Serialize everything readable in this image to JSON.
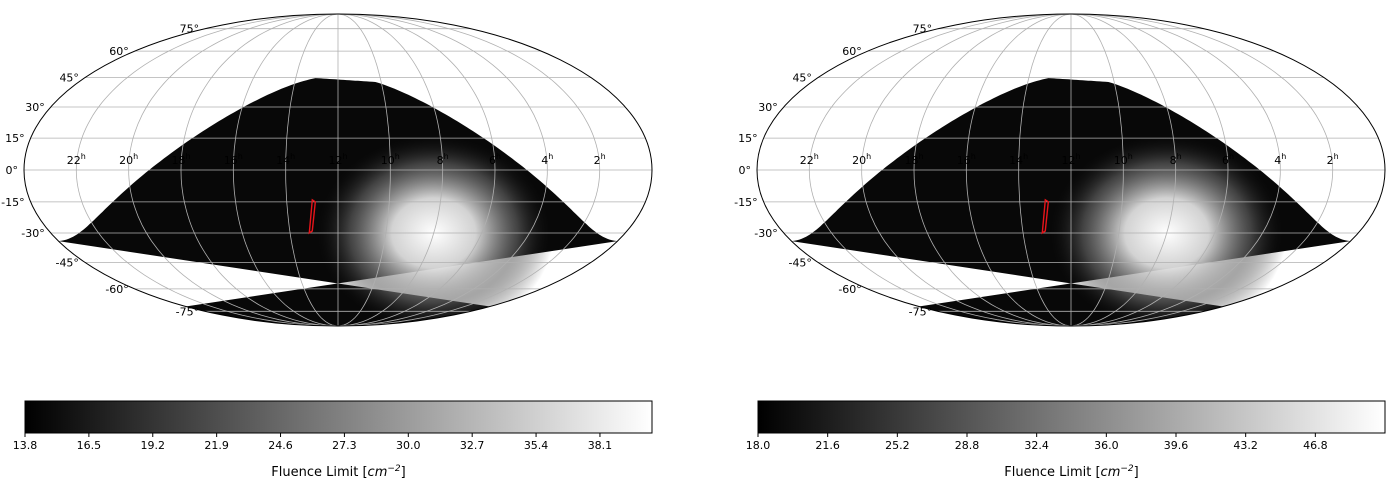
{
  "chart_data": [
    {
      "type": "heatmap",
      "projection": "mollweide",
      "colormap": "gray",
      "colorbar": {
        "label": "Fluence Limit",
        "label_unit_base": "cm",
        "label_unit_exp": "−2",
        "min": 13.8,
        "max": 40.3,
        "ticks": [
          "13.8",
          "16.5",
          "19.2",
          "21.9",
          "24.6",
          "27.3",
          "30.0",
          "32.7",
          "35.4",
          "38.1"
        ]
      },
      "dec_tick_labels": [
        "75°",
        "60°",
        "45°",
        "30°",
        "15°",
        "0°",
        "-15°",
        "-30°",
        "-45°",
        "-60°",
        "-75°"
      ],
      "ra_tick_labels": [
        "22",
        "20",
        "18",
        "16",
        "14",
        "12",
        "10",
        "8",
        "6",
        "4",
        "2"
      ],
      "ra_unit": "h",
      "grid": true,
      "shaded_region": "bright maximum near RA 8h, Dec -30°; visible region bounded by the sky-limit curve",
      "marker": {
        "ra_hours": 13.0,
        "dec_deg": -22,
        "color": "#e8141a"
      }
    },
    {
      "type": "heatmap",
      "projection": "mollweide",
      "colormap": "gray",
      "colorbar": {
        "label": "Fluence Limit",
        "label_unit_base": "cm",
        "label_unit_exp": "−2",
        "min": 18.0,
        "max": 50.4,
        "ticks": [
          "18.0",
          "21.6",
          "25.2",
          "28.8",
          "32.4",
          "36.0",
          "39.6",
          "43.2",
          "46.8"
        ]
      },
      "dec_tick_labels": [
        "75°",
        "60°",
        "45°",
        "30°",
        "15°",
        "0°",
        "-15°",
        "-30°",
        "-45°",
        "-60°",
        "-75°"
      ],
      "ra_tick_labels": [
        "22",
        "20",
        "18",
        "16",
        "14",
        "12",
        "10",
        "8",
        "6",
        "4",
        "2"
      ],
      "ra_unit": "h",
      "grid": true,
      "shaded_region": "bright maximum near RA 8h, Dec -30°; visible region bounded by the sky-limit curve",
      "marker": {
        "ra_hours": 13.0,
        "dec_deg": -22,
        "color": "#e8141a"
      }
    }
  ]
}
